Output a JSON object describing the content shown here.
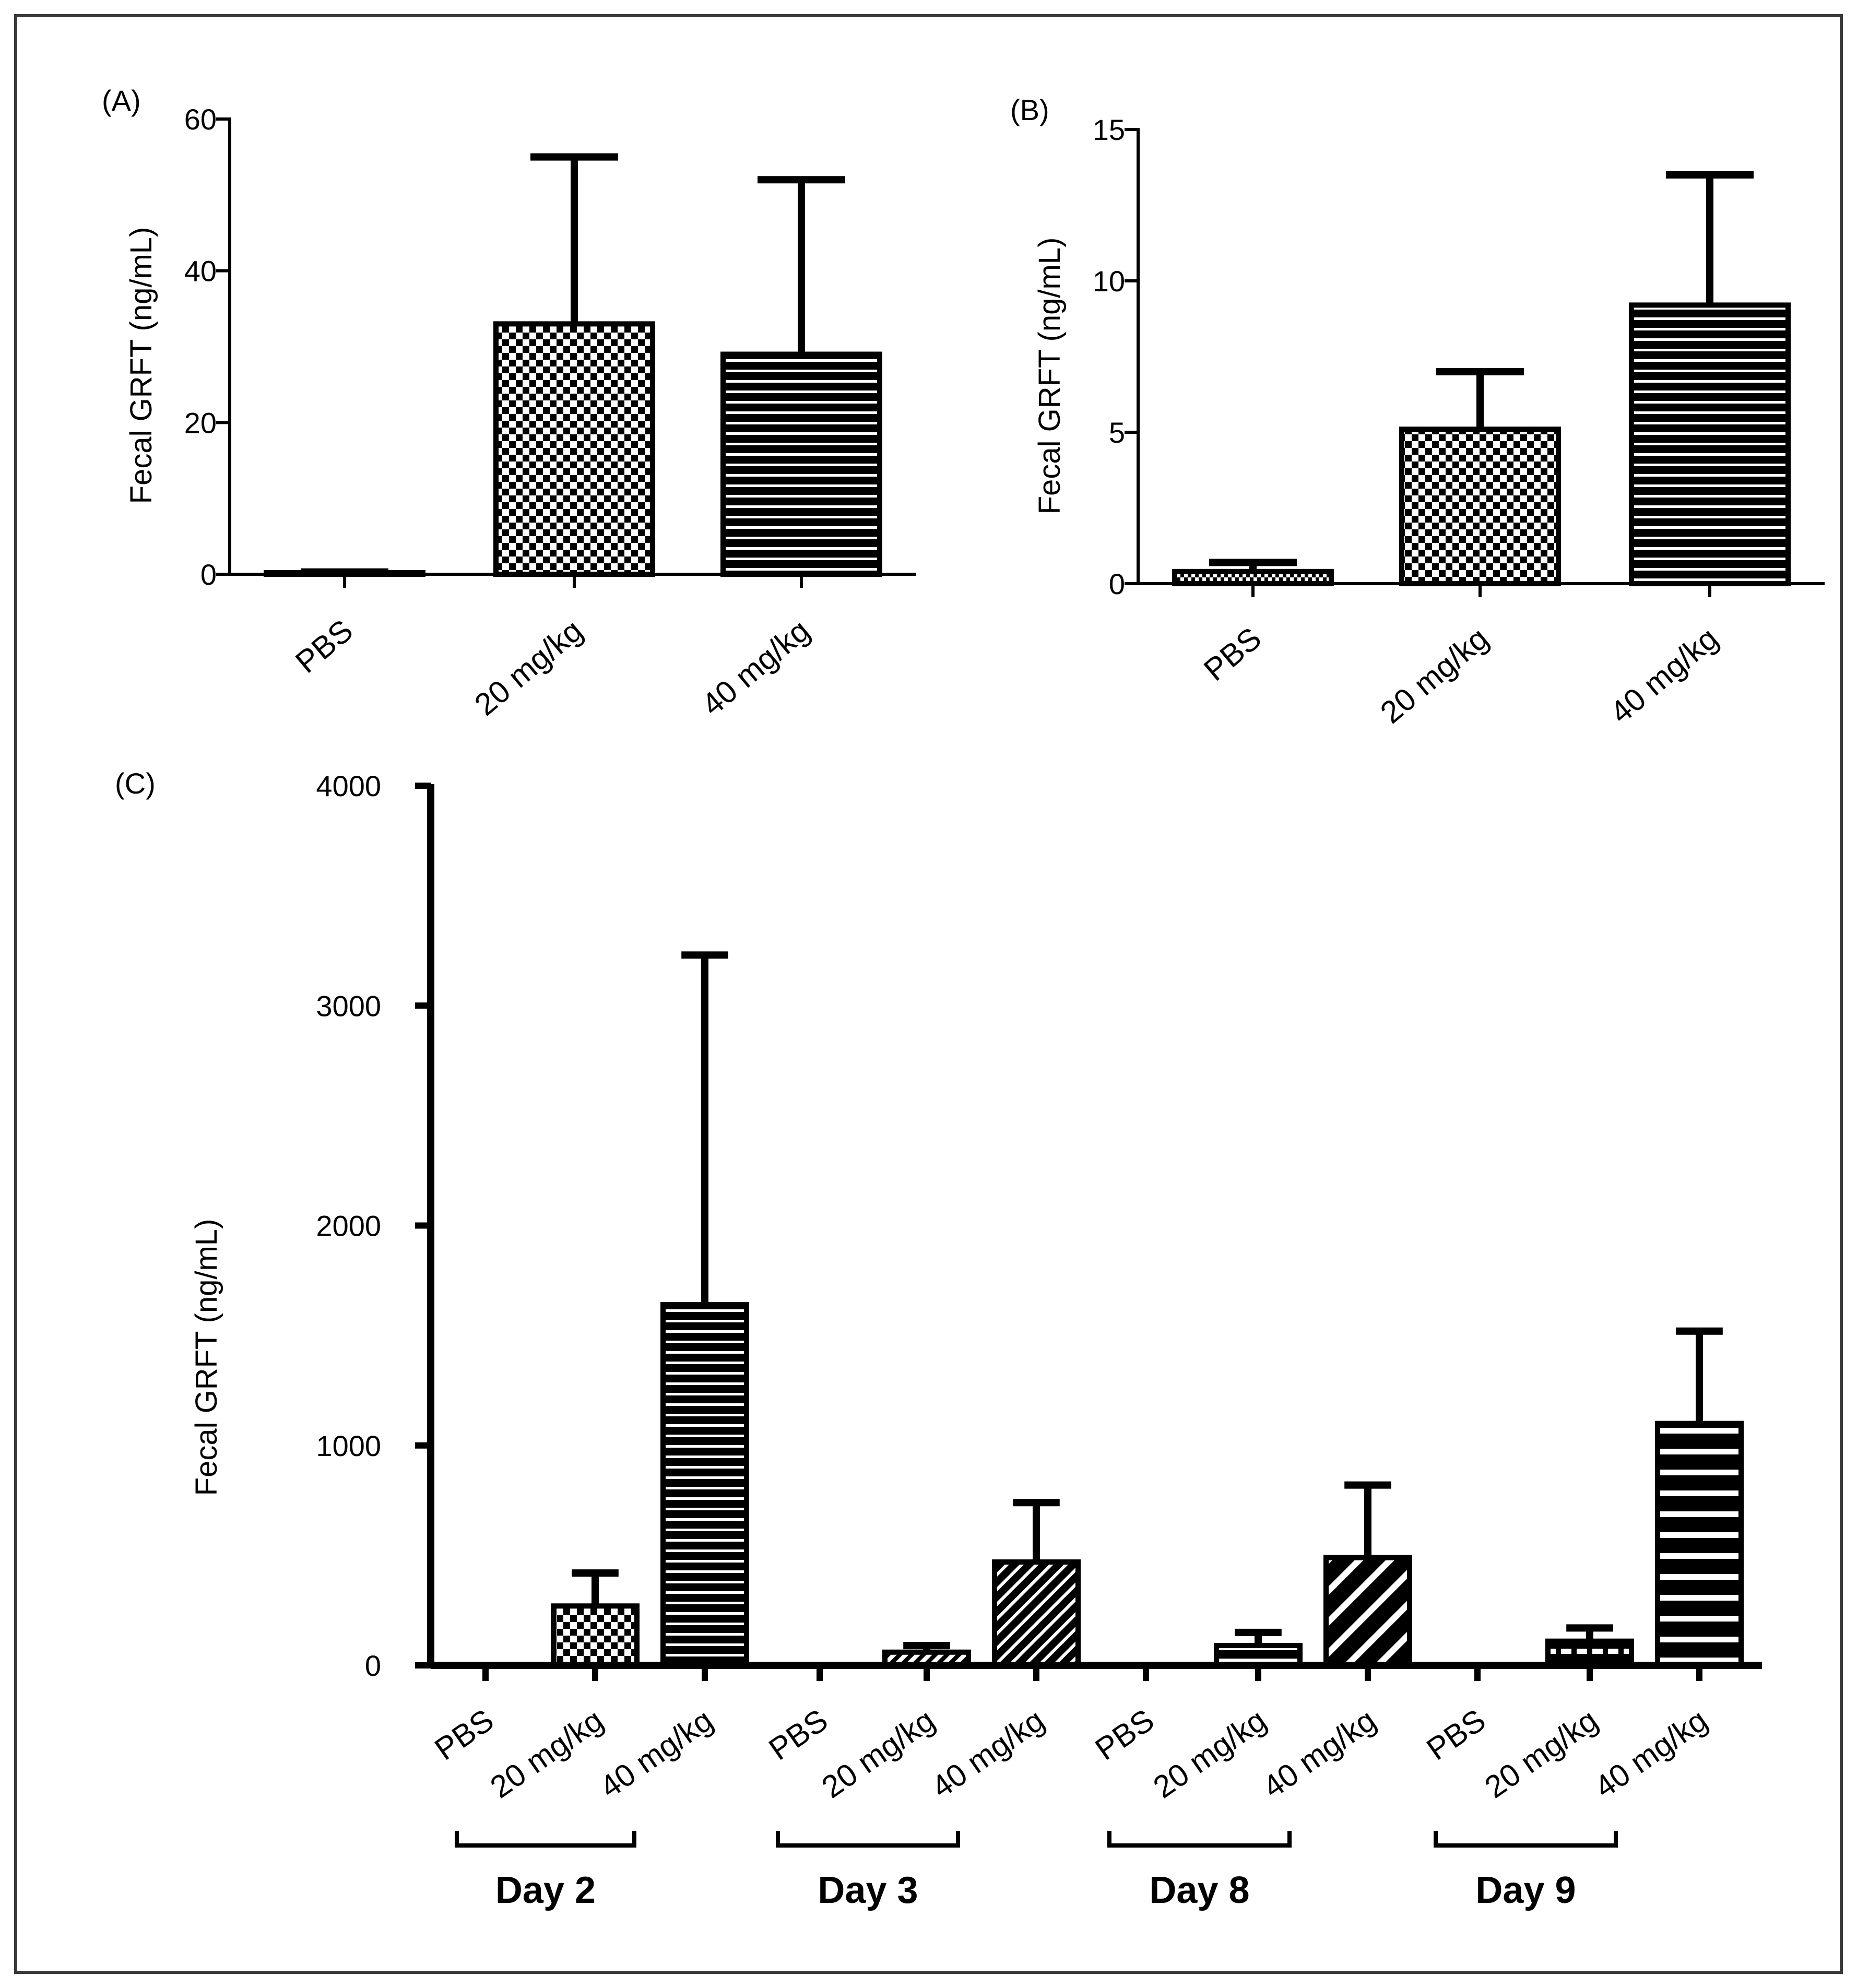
{
  "chart_data": [
    {
      "panel": "(A)",
      "type": "bar",
      "ylabel": "Fecal GRFT (ng/mL)",
      "ylim": [
        0,
        60
      ],
      "yticks": [
        0,
        20,
        40,
        60
      ],
      "categories": [
        "PBS",
        "20 mg/kg",
        "40 mg/kg"
      ],
      "values": [
        0.2,
        33,
        29
      ],
      "errors": [
        0.1,
        22,
        23
      ],
      "patterns": [
        "dots",
        "checker",
        "hlines"
      ]
    },
    {
      "panel": "(B)",
      "type": "bar",
      "ylabel": "Fecal GRFT (ng/mL)",
      "ylim": [
        0,
        15
      ],
      "yticks": [
        0,
        5,
        10,
        15
      ],
      "categories": [
        "PBS",
        "20 mg/kg",
        "40 mg/kg"
      ],
      "values": [
        0.4,
        5.1,
        9.2
      ],
      "errors": [
        0.3,
        1.9,
        4.3
      ],
      "patterns": [
        "dots",
        "checker",
        "hlines"
      ]
    },
    {
      "panel": "(C)",
      "type": "bar",
      "ylabel": "Fecal GRFT (ng/mL)",
      "ylim": [
        0,
        4000
      ],
      "yticks": [
        0,
        1000,
        2000,
        3000,
        4000
      ],
      "categories": [
        "PBS",
        "20 mg/kg",
        "40 mg/kg",
        "PBS",
        "20 mg/kg",
        "40 mg/kg",
        "PBS",
        "20 mg/kg",
        "40 mg/kg",
        "PBS",
        "20 mg/kg",
        "40 mg/kg"
      ],
      "groups": [
        "Day 2",
        "Day 3",
        "Day 8",
        "Day 9"
      ],
      "values": [
        0,
        270,
        1640,
        0,
        60,
        470,
        0,
        90,
        490,
        0,
        110,
        1100
      ],
      "errors": [
        0,
        150,
        1590,
        0,
        30,
        270,
        0,
        60,
        330,
        0,
        60,
        420
      ],
      "patterns": [
        "none",
        "checker",
        "hlines",
        "none",
        "slant",
        "diag",
        "none",
        "hstripe",
        "diagwide",
        "none",
        "wideh",
        "hbands"
      ]
    }
  ]
}
